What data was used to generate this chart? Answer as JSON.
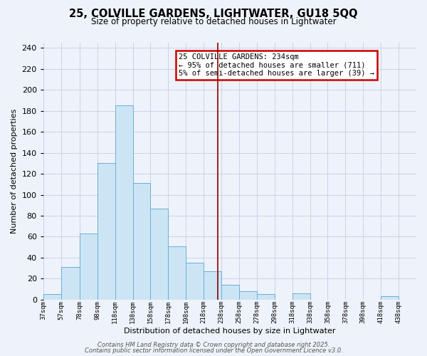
{
  "title": "25, COLVILLE GARDENS, LIGHTWATER, GU18 5QQ",
  "subtitle": "Size of property relative to detached houses in Lightwater",
  "xlabel": "Distribution of detached houses by size in Lightwater",
  "ylabel": "Number of detached properties",
  "bin_edges": [
    37,
    57,
    78,
    98,
    118,
    138,
    158,
    178,
    198,
    218,
    238,
    258,
    278,
    298,
    318,
    338,
    358,
    378,
    398,
    418,
    438,
    458
  ],
  "counts": [
    5,
    31,
    63,
    130,
    185,
    111,
    87,
    51,
    35,
    27,
    14,
    8,
    5,
    0,
    6,
    0,
    0,
    0,
    0,
    3,
    0
  ],
  "bar_facecolor": "#cce5f5",
  "bar_edgecolor": "#6aafd6",
  "grid_color": "#c8d4e8",
  "background_color": "#eef2fa",
  "vline_x": 234,
  "vline_color": "#8b0000",
  "annotation_text": "25 COLVILLE GARDENS: 234sqm\n← 95% of detached houses are smaller (711)\n5% of semi-detached houses are larger (39) →",
  "annotation_box_edgecolor": "#cc0000",
  "annotation_box_facecolor": "#ffffff",
  "ylim": [
    0,
    245
  ],
  "xlim": [
    37,
    458
  ],
  "yticks": [
    0,
    20,
    40,
    60,
    80,
    100,
    120,
    140,
    160,
    180,
    200,
    220,
    240
  ],
  "tick_labels": [
    "37sqm",
    "57sqm",
    "78sqm",
    "98sqm",
    "118sqm",
    "138sqm",
    "158sqm",
    "178sqm",
    "198sqm",
    "218sqm",
    "238sqm",
    "258sqm",
    "278sqm",
    "298sqm",
    "318sqm",
    "338sqm",
    "358sqm",
    "378sqm",
    "398sqm",
    "418sqm",
    "438sqm"
  ],
  "footer_line1": "Contains HM Land Registry data © Crown copyright and database right 2025.",
  "footer_line2": "Contains public sector information licensed under the Open Government Licence v3.0."
}
